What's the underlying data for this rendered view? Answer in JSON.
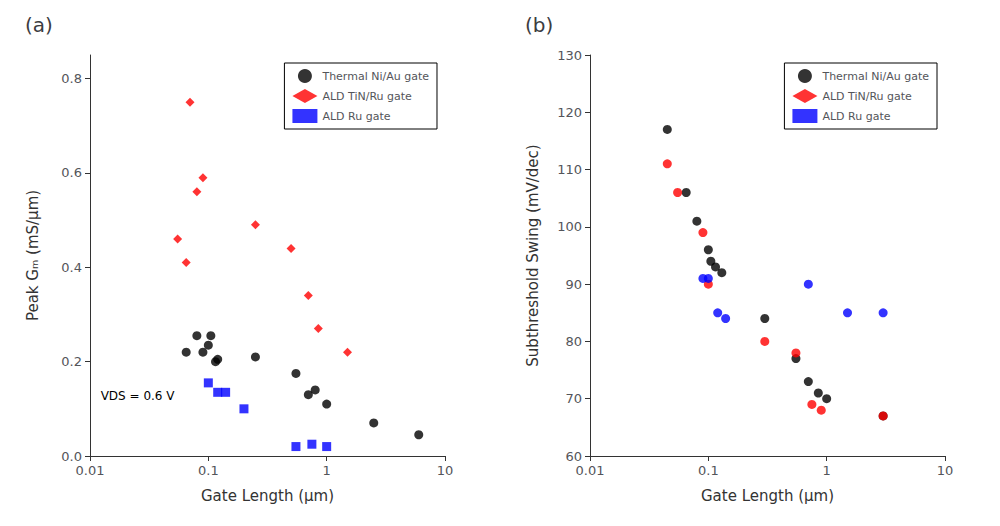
{
  "chart_data": [
    {
      "type": "scatter",
      "title": "(a)",
      "xlabel": "Gate Length (μm)",
      "ylabel": "Peak Gₘ (mS/μm)",
      "log": "x",
      "xlim": [
        0.01,
        10
      ],
      "xticks": [
        0.01,
        0.1,
        1,
        10
      ],
      "ylim": [
        0,
        0.85
      ],
      "yticks": [
        {
          "value": 0,
          "label": "0.0"
        },
        0.2,
        0.4,
        0.6,
        0.8
      ],
      "grid": false,
      "legend": "upper right",
      "annotation": "VDS = 0.6 V",
      "series": [
        {
          "name": "Thermal Ni/Au gate",
          "color": "#000000",
          "marker": "circle",
          "x": [
            0.065,
            0.08,
            0.09,
            0.1,
            0.105,
            0.115,
            0.12,
            0.25,
            0.55,
            0.7,
            0.8,
            1.0,
            2.5,
            6.0
          ],
          "values": [
            0.22,
            0.255,
            0.22,
            0.235,
            0.255,
            0.2,
            0.205,
            0.21,
            0.175,
            0.13,
            0.14,
            0.11,
            0.07,
            0.045
          ]
        },
        {
          "name": "ALD TiN/Ru gate",
          "color": "#ff0000",
          "marker": "diamond",
          "x": [
            0.055,
            0.065,
            0.07,
            0.08,
            0.09,
            0.25,
            0.5,
            0.7,
            0.85,
            1.5
          ],
          "values": [
            0.46,
            0.41,
            0.75,
            0.56,
            0.59,
            0.49,
            0.44,
            0.34,
            0.27,
            0.22
          ]
        },
        {
          "name": "ALD Ru gate",
          "color": "#0000ff",
          "marker": "square",
          "x": [
            0.1,
            0.12,
            0.14,
            0.2,
            0.55,
            0.75,
            1.0
          ],
          "values": [
            0.155,
            0.135,
            0.135,
            0.1,
            0.02,
            0.025,
            0.02
          ]
        }
      ]
    },
    {
      "type": "scatter",
      "title": "(b)",
      "xlabel": "Gate Length (μm)",
      "ylabel": "Subthreshold Swing (mV/dec)",
      "log": "x",
      "xlim": [
        0.01,
        10
      ],
      "xticks": [
        0.01,
        0.1,
        1,
        10
      ],
      "ylim": [
        60,
        130
      ],
      "yticks": [
        60,
        70,
        80,
        90,
        100,
        110,
        120,
        130
      ],
      "grid": false,
      "legend": "upper right",
      "series": [
        {
          "name": "Thermal Ni/Au gate",
          "color": "#000000",
          "marker": "circle",
          "x": [
            0.045,
            0.065,
            0.08,
            0.1,
            0.105,
            0.115,
            0.13,
            0.3,
            0.55,
            0.7,
            0.85,
            1.0,
            3.0
          ],
          "values": [
            117,
            106,
            101,
            96,
            94,
            93,
            92,
            84,
            77,
            73,
            71,
            70,
            67
          ]
        },
        {
          "name": "ALD TiN/Ru gate",
          "color": "#ff0000",
          "marker": "circle",
          "x": [
            0.045,
            0.055,
            0.09,
            0.1,
            0.3,
            0.55,
            0.75,
            0.9,
            3.0
          ],
          "values": [
            111,
            106,
            99,
            90,
            80,
            78,
            69,
            68,
            67
          ]
        },
        {
          "name": "ALD Ru gate",
          "color": "#0000ff",
          "marker": "circle",
          "x": [
            0.09,
            0.1,
            0.12,
            0.14,
            0.7,
            1.5,
            3.0
          ],
          "values": [
            91,
            91,
            85,
            84,
            90,
            85,
            85
          ]
        }
      ]
    }
  ]
}
